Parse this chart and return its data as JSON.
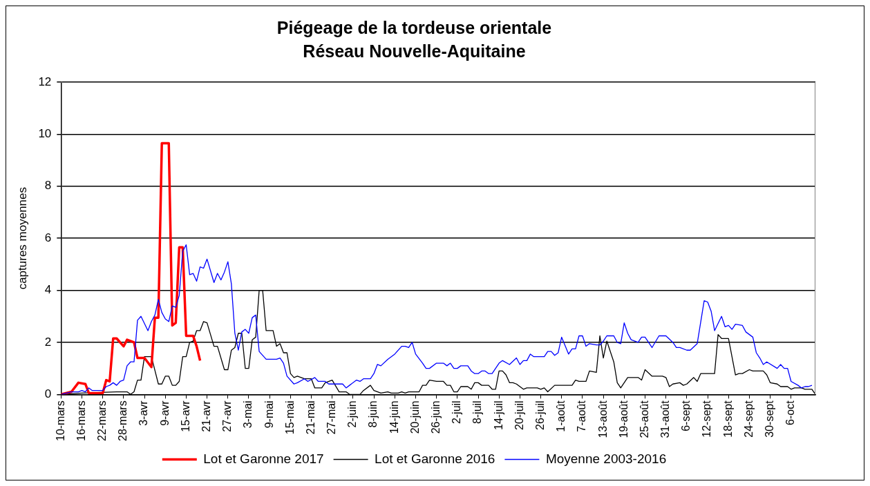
{
  "chart_data": {
    "type": "line",
    "title": "Piégeage de la tordeuse orientale",
    "subtitle": "Réseau Nouvelle-Aquitaine",
    "ylabel": "captures moyennes",
    "xlim": [
      "--03-10",
      "--10-13"
    ],
    "xticks": [
      {
        "value": "--03-10",
        "label": "10-mars"
      },
      {
        "value": "--03-16",
        "label": "16-mars"
      },
      {
        "value": "--03-22",
        "label": "22-mars"
      },
      {
        "value": "--03-28",
        "label": "28-mars"
      },
      {
        "value": "--04-03",
        "label": "3-avr"
      },
      {
        "value": "--04-09",
        "label": "9-avr"
      },
      {
        "value": "--04-15",
        "label": "15-avr"
      },
      {
        "value": "--04-21",
        "label": "21-avr"
      },
      {
        "value": "--04-27",
        "label": "27-avr"
      },
      {
        "value": "--05-03",
        "label": "3-mai"
      },
      {
        "value": "--05-09",
        "label": "9-mai"
      },
      {
        "value": "--05-15",
        "label": "15-mai"
      },
      {
        "value": "--05-21",
        "label": "21-mai"
      },
      {
        "value": "--05-27",
        "label": "27-mai"
      },
      {
        "value": "--06-02",
        "label": "2-juin"
      },
      {
        "value": "--06-08",
        "label": "8-juin"
      },
      {
        "value": "--06-14",
        "label": "14-juin"
      },
      {
        "value": "--06-20",
        "label": "20-juin"
      },
      {
        "value": "--06-26",
        "label": "26-juin"
      },
      {
        "value": "--07-02",
        "label": "2-juil"
      },
      {
        "value": "--07-08",
        "label": "8-juil"
      },
      {
        "value": "--07-14",
        "label": "14-juil"
      },
      {
        "value": "--07-20",
        "label": "20-juil"
      },
      {
        "value": "--07-26",
        "label": "26-juil"
      },
      {
        "value": "--08-01",
        "label": "1-août"
      },
      {
        "value": "--08-07",
        "label": "7-août"
      },
      {
        "value": "--08-13",
        "label": "13-août"
      },
      {
        "value": "--08-19",
        "label": "19-août"
      },
      {
        "value": "--08-25",
        "label": "25-août"
      },
      {
        "value": "--08-31",
        "label": "31-août"
      },
      {
        "value": "--09-06",
        "label": "6-sept"
      },
      {
        "value": "--09-12",
        "label": "12-sept"
      },
      {
        "value": "--09-18",
        "label": "18-sept"
      },
      {
        "value": "--09-24",
        "label": "24-sept"
      },
      {
        "value": "--09-30",
        "label": "30-sept"
      },
      {
        "value": "--10-06",
        "label": "6-oct"
      }
    ],
    "ylim": [
      0,
      12
    ],
    "yticks": [
      0,
      2,
      4,
      6,
      8,
      10,
      12
    ],
    "grid": "y",
    "legend": "bottom",
    "marker": "none",
    "line_style": "solid",
    "series": [
      {
        "name": "Lot et Garonne 2017",
        "color": "#ff0000",
        "x": [
          "--03-10",
          "--03-13",
          "--03-15",
          "--03-17",
          "--03-18",
          "--03-22",
          "--03-23",
          "--03-24",
          "--03-25",
          "--03-26",
          "--03-28",
          "--03-29",
          "--03-31",
          "--04-01",
          "--04-03",
          "--04-05",
          "--04-06",
          "--04-07",
          "--04-08",
          "--04-10",
          "--04-11",
          "--04-12",
          "--04-13",
          "--04-14",
          "--04-15",
          "--04-17",
          "--04-18",
          "--04-19"
        ],
        "values": [
          0,
          0.1,
          0.45,
          0.4,
          0.05,
          0.05,
          0.55,
          0.5,
          2.15,
          2.15,
          1.85,
          2.1,
          2,
          1.4,
          1.4,
          1.05,
          2.95,
          2.95,
          9.65,
          9.65,
          2.65,
          2.75,
          5.65,
          5.65,
          2.25,
          2.25,
          1.85,
          1.3
        ]
      },
      {
        "name": "Lot et Garonne 2016",
        "color": "#000000",
        "x": [
          "--03-10",
          "--03-16",
          "--03-26",
          "--03-29",
          "--03-30",
          "--03-31",
          "--04-01",
          "--04-02",
          "--04-03",
          "--04-05",
          "--04-07",
          "--04-08",
          "--04-09",
          "--04-10",
          "--04-11",
          "--04-12",
          "--04-13",
          "--04-14",
          "--04-15",
          "--04-16",
          "--04-17",
          "--04-18",
          "--04-19",
          "--04-20",
          "--04-21",
          "--04-23",
          "--04-24",
          "--04-26",
          "--04-27",
          "--04-28",
          "--04-29",
          "--04-30",
          "--05-01",
          "--05-02",
          "--05-03",
          "--05-04",
          "--05-05",
          "--05-06",
          "--05-07",
          "--05-08",
          "--05-10",
          "--05-11",
          "--05-12",
          "--05-13",
          "--05-14",
          "--05-15",
          "--05-16",
          "--05-17",
          "--05-19",
          "--05-21",
          "--05-22",
          "--05-24",
          "--05-25",
          "--05-27",
          "--05-29",
          "--05-31",
          "--06-01",
          "--06-04",
          "--06-05",
          "--06-07",
          "--06-08",
          "--06-10",
          "--06-12",
          "--06-13",
          "--06-15",
          "--06-16",
          "--06-17",
          "--06-18",
          "--06-21",
          "--06-22",
          "--06-23",
          "--06-24",
          "--06-26",
          "--06-28",
          "--06-29",
          "--06-30",
          "--07-01",
          "--07-02",
          "--07-03",
          "--07-05",
          "--07-06",
          "--07-07",
          "--07-08",
          "--07-09",
          "--07-11",
          "--07-12",
          "--07-13",
          "--07-14",
          "--07-15",
          "--07-16",
          "--07-17",
          "--07-18",
          "--07-19",
          "--07-21",
          "--07-22",
          "--07-25",
          "--07-26",
          "--07-27",
          "--07-28",
          "--07-30",
          "--08-04",
          "--08-05",
          "--08-06",
          "--08-08",
          "--08-09",
          "--08-11",
          "--08-12",
          "--08-13",
          "--08-14",
          "--08-16",
          "--08-17",
          "--08-18",
          "--08-20",
          "--08-23",
          "--08-24",
          "--08-25",
          "--08-27",
          "--08-30",
          "--08-31",
          "--09-01",
          "--09-02",
          "--09-04",
          "--09-05",
          "--09-06",
          "--09-08",
          "--09-09",
          "--09-10",
          "--09-14",
          "--09-15",
          "--09-16",
          "--09-18",
          "--09-20",
          "--09-21",
          "--09-22",
          "--09-24",
          "--09-25",
          "--09-28",
          "--09-29",
          "--09-30",
          "--10-02",
          "--10-03",
          "--10-05",
          "--10-06",
          "--10-07",
          "--10-09",
          "--10-10",
          "--10-12",
          "--10-13"
        ],
        "values": [
          0,
          0.05,
          0.1,
          0.1,
          0,
          0.1,
          0.55,
          0.55,
          1.45,
          1.45,
          0.4,
          0.4,
          0.7,
          0.7,
          0.35,
          0.35,
          0.5,
          1.45,
          1.45,
          2,
          2.05,
          2.45,
          2.45,
          2.8,
          2.75,
          1.85,
          1.85,
          0.95,
          0.95,
          1.7,
          1.8,
          2.35,
          2.35,
          1,
          1,
          2.1,
          2.2,
          4,
          4,
          2.45,
          2.45,
          1.85,
          1.95,
          1.6,
          1.6,
          0.8,
          0.65,
          0.7,
          0.6,
          0.6,
          0.25,
          0.25,
          0.45,
          0.55,
          0.1,
          0.1,
          0,
          0,
          0.15,
          0.35,
          0.15,
          0.05,
          0.1,
          0.05,
          0.05,
          0.1,
          0.05,
          0.1,
          0.1,
          0.35,
          0.35,
          0.55,
          0.5,
          0.5,
          0.35,
          0.35,
          0.1,
          0.1,
          0.3,
          0.3,
          0.2,
          0.45,
          0.45,
          0.35,
          0.35,
          0.2,
          0.2,
          0.9,
          0.9,
          0.75,
          0.45,
          0.45,
          0.4,
          0.2,
          0.25,
          0.25,
          0.2,
          0.25,
          0.1,
          0.35,
          0.35,
          0.55,
          0.5,
          0.5,
          0.9,
          0.85,
          2.25,
          1.4,
          2.05,
          1.25,
          0.45,
          0.25,
          0.65,
          0.65,
          0.55,
          0.95,
          0.7,
          0.7,
          0.65,
          0.3,
          0.4,
          0.45,
          0.35,
          0.4,
          0.65,
          0.5,
          0.8,
          0.8,
          2.3,
          2.15,
          2.15,
          0.75,
          0.8,
          0.8,
          0.95,
          0.9,
          0.9,
          0.75,
          0.45,
          0.4,
          0.3,
          0.3,
          0.2,
          0.25,
          0.25,
          0.2,
          0.2,
          0
        ]
      },
      {
        "name": "Moyenne 2003-2016",
        "color": "#0000ff",
        "x": [
          "--03-10",
          "--03-13",
          "--03-15",
          "--03-16",
          "--03-17",
          "--03-18",
          "--03-19",
          "--03-22",
          "--03-23",
          "--03-24",
          "--03-25",
          "--03-26",
          "--03-27",
          "--03-28",
          "--03-29",
          "--03-30",
          "--03-31",
          "--04-01",
          "--04-02",
          "--04-04",
          "--04-05",
          "--04-06",
          "--04-07",
          "--04-08",
          "--04-09",
          "--04-10",
          "--04-11",
          "--04-12",
          "--04-13",
          "--04-14",
          "--04-15",
          "--04-16",
          "--04-17",
          "--04-18",
          "--04-19",
          "--04-20",
          "--04-21",
          "--04-23",
          "--04-24",
          "--04-25",
          "--04-26",
          "--04-27",
          "--04-28",
          "--04-29",
          "--04-30",
          "--05-01",
          "--05-02",
          "--05-03",
          "--05-04",
          "--05-05",
          "--05-06",
          "--05-08",
          "--05-11",
          "--05-12",
          "--05-13",
          "--05-14",
          "--05-16",
          "--05-17",
          "--05-19",
          "--05-20",
          "--05-22",
          "--05-23",
          "--05-25",
          "--05-26",
          "--05-30",
          "--05-31",
          "--06-01",
          "--06-03",
          "--06-04",
          "--06-05",
          "--06-07",
          "--06-08",
          "--06-09",
          "--06-10",
          "--06-12",
          "--06-14",
          "--06-16",
          "--06-17",
          "--06-18",
          "--06-19",
          "--06-20",
          "--06-22",
          "--06-23",
          "--06-24",
          "--06-26",
          "--06-28",
          "--06-29",
          "--06-30",
          "--07-01",
          "--07-02",
          "--07-03",
          "--07-05",
          "--07-06",
          "--07-07",
          "--07-08",
          "--07-09",
          "--07-10",
          "--07-11",
          "--07-12",
          "--07-14",
          "--07-15",
          "--07-17",
          "--07-19",
          "--07-20",
          "--07-21",
          "--07-22",
          "--07-23",
          "--07-24",
          "--07-27",
          "--07-28",
          "--07-29",
          "--07-30",
          "--07-31",
          "--08-01",
          "--08-03",
          "--08-04",
          "--08-05",
          "--08-06",
          "--08-07",
          "--08-08",
          "--08-09",
          "--08-11",
          "--08-12",
          "--08-13",
          "--08-14",
          "--08-16",
          "--08-17",
          "--08-18",
          "--08-19",
          "--08-20",
          "--08-21",
          "--08-23",
          "--08-24",
          "--08-25",
          "--08-27",
          "--08-29",
          "--08-31",
          "--09-02",
          "--09-03",
          "--09-04",
          "--09-06",
          "--09-07",
          "--09-09",
          "--09-11",
          "--09-12",
          "--09-13",
          "--09-14",
          "--09-16",
          "--09-17",
          "--09-18",
          "--09-19",
          "--09-20",
          "--09-22",
          "--09-23",
          "--09-25",
          "--09-26",
          "--09-27",
          "--09-28",
          "--09-29",
          "--10-02",
          "--10-03",
          "--10-04",
          "--10-05",
          "--10-06",
          "--10-08",
          "--10-09",
          "--10-10",
          "--10-11",
          "--10-12"
        ],
        "values": [
          0,
          0.1,
          0.1,
          0.15,
          0.1,
          0.25,
          0.15,
          0.15,
          0.3,
          0.35,
          0.45,
          0.35,
          0.5,
          0.55,
          1.1,
          1.25,
          1.25,
          2.85,
          3,
          2.45,
          2.8,
          3.05,
          3.65,
          3.15,
          2.9,
          2.8,
          3.4,
          3.35,
          3.8,
          5.5,
          5.75,
          4.6,
          4.65,
          4.35,
          4.9,
          4.85,
          5.2,
          4.3,
          4.65,
          4.4,
          4.7,
          5.1,
          4.25,
          2.35,
          1.7,
          2.4,
          2.5,
          2.35,
          2.95,
          3.05,
          1.65,
          1.35,
          1.35,
          1.4,
          1.2,
          0.7,
          0.4,
          0.45,
          0.6,
          0.5,
          0.65,
          0.5,
          0.5,
          0.4,
          0.4,
          0.25,
          0.35,
          0.55,
          0.5,
          0.6,
          0.6,
          0.8,
          1.15,
          1.1,
          1.35,
          1.55,
          1.85,
          1.85,
          1.8,
          2,
          1.55,
          1.2,
          1,
          1,
          1.2,
          1.2,
          1.1,
          1.2,
          1,
          1,
          1.1,
          1.1,
          0.9,
          0.8,
          0.8,
          0.9,
          0.9,
          0.8,
          0.8,
          1.2,
          1.3,
          1.15,
          1.4,
          1.15,
          1.3,
          1.3,
          1.55,
          1.45,
          1.45,
          1.65,
          1.65,
          1.5,
          1.6,
          2.2,
          1.55,
          1.75,
          1.75,
          2.25,
          2.25,
          1.85,
          1.95,
          1.9,
          1.9,
          2.05,
          2.25,
          2.25,
          2,
          1.95,
          2.75,
          2.35,
          2.1,
          2,
          2.2,
          2.2,
          1.8,
          2.25,
          2.25,
          2,
          1.8,
          1.8,
          1.7,
          1.7,
          1.95,
          3.6,
          3.55,
          3.2,
          2.45,
          3,
          2.6,
          2.65,
          2.5,
          2.7,
          2.65,
          2.4,
          2.2,
          1.6,
          1.4,
          1.15,
          1.25,
          1,
          1.15,
          1,
          1,
          0.5,
          0.35,
          0.25,
          0.3,
          0.3,
          0.35
        ]
      }
    ]
  }
}
